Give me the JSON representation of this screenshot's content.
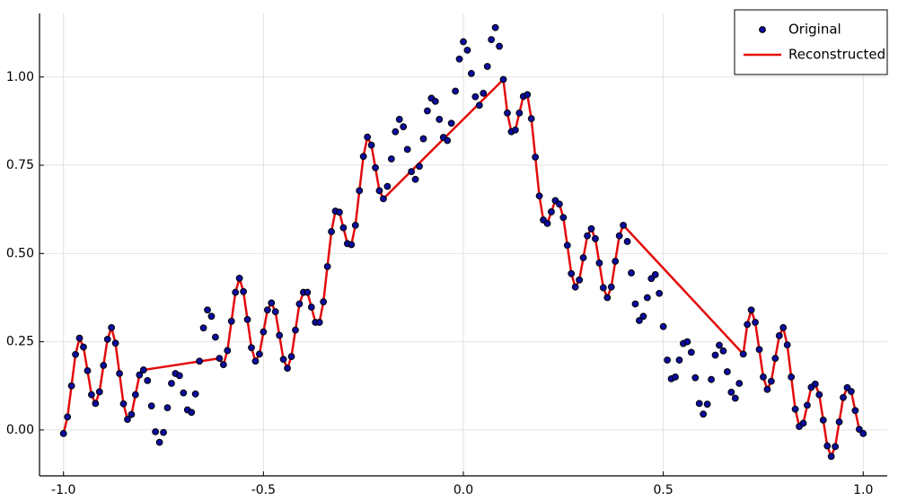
{
  "chart_data": {
    "type": "scatter",
    "xlim": [
      -1.06,
      1.06
    ],
    "ylim": [
      -0.13,
      1.18
    ],
    "xticks": [
      {
        "value": -1,
        "label": "-1.0"
      },
      {
        "value": -0.5,
        "label": "-0.5"
      },
      {
        "value": 0,
        "label": "0.0"
      },
      {
        "value": 0.5,
        "label": "0.5"
      },
      {
        "value": 1,
        "label": "1.0"
      }
    ],
    "yticks": [
      {
        "value": 0,
        "label": "0.00"
      },
      {
        "value": 0.25,
        "label": "0.25"
      },
      {
        "value": 0.5,
        "label": "0.50"
      },
      {
        "value": 0.75,
        "label": "0.75"
      },
      {
        "value": 1,
        "label": "1.00"
      }
    ],
    "grid": true,
    "legend": "upper right",
    "series": [
      {
        "name": "Original",
        "type": "scatter",
        "color": "#0c0c9e",
        "x": [
          -1,
          -0.99,
          -0.98,
          -0.97,
          -0.96,
          -0.95,
          -0.94,
          -0.93,
          -0.92,
          -0.91,
          -0.9,
          -0.89,
          -0.88,
          -0.87,
          -0.86,
          -0.85,
          -0.84,
          -0.83,
          -0.82,
          -0.81,
          -0.8,
          -0.79,
          -0.78,
          -0.77,
          -0.76,
          -0.75,
          -0.74,
          -0.73,
          -0.72,
          -0.71,
          -0.7,
          -0.69,
          -0.68,
          -0.67,
          -0.66,
          -0.65,
          -0.64,
          -0.63,
          -0.62,
          -0.61,
          -0.6,
          -0.59,
          -0.58,
          -0.57,
          -0.56,
          -0.55,
          -0.54,
          -0.53,
          -0.52,
          -0.51,
          -0.5,
          -0.49,
          -0.48,
          -0.47,
          -0.46,
          -0.45,
          -0.44,
          -0.43,
          -0.42,
          -0.41,
          -0.4,
          -0.39,
          -0.38,
          -0.37,
          -0.36,
          -0.35,
          -0.34,
          -0.33,
          -0.32,
          -0.31,
          -0.3,
          -0.29,
          -0.28,
          -0.27,
          -0.26,
          -0.25,
          -0.24,
          -0.23,
          -0.22,
          -0.21,
          -0.2,
          -0.19,
          -0.18,
          -0.17,
          -0.16,
          -0.15,
          -0.14,
          -0.13,
          -0.12,
          -0.11,
          -0.1,
          -0.09,
          -0.08,
          -0.07,
          -0.06,
          -0.05,
          -0.04,
          -0.03,
          -0.02,
          -0.01,
          0,
          0.01,
          0.02,
          0.03,
          0.04,
          0.05,
          0.06,
          0.07,
          0.08,
          0.09,
          0.1,
          0.11,
          0.12,
          0.13,
          0.14,
          0.15,
          0.16,
          0.17,
          0.18,
          0.19,
          0.2,
          0.21,
          0.22,
          0.23,
          0.24,
          0.25,
          0.26,
          0.27,
          0.28,
          0.29,
          0.3,
          0.31,
          0.32,
          0.33,
          0.34,
          0.35,
          0.36,
          0.37,
          0.38,
          0.39,
          0.4,
          0.41,
          0.42,
          0.43,
          0.44,
          0.45,
          0.46,
          0.47,
          0.48,
          0.49,
          0.5,
          0.51,
          0.52,
          0.53,
          0.54,
          0.55,
          0.56,
          0.57,
          0.58,
          0.59,
          0.6,
          0.61,
          0.62,
          0.63,
          0.64,
          0.65,
          0.66,
          0.67,
          0.68,
          0.69,
          0.7,
          0.71,
          0.72,
          0.73,
          0.74,
          0.75,
          0.76,
          0.77,
          0.78,
          0.79,
          0.8,
          0.81,
          0.82,
          0.83,
          0.84,
          0.85,
          0.86,
          0.87,
          0.88,
          0.89,
          0.9,
          0.91,
          0.92,
          0.93,
          0.94,
          0.95,
          0.96,
          0.97,
          0.98,
          0.99,
          1
        ],
        "values": [
          -0.01,
          0.037,
          0.125,
          0.214,
          0.26,
          0.235,
          0.168,
          0.1,
          0.075,
          0.108,
          0.183,
          0.257,
          0.29,
          0.246,
          0.16,
          0.074,
          0.03,
          0.044,
          0.1,
          0.156,
          0.17,
          0.14,
          0.068,
          -0.005,
          -0.035,
          -0.007,
          0.063,
          0.132,
          0.16,
          0.154,
          0.105,
          0.057,
          0.05,
          0.102,
          0.195,
          0.289,
          0.34,
          0.322,
          0.263,
          0.203,
          0.185,
          0.225,
          0.308,
          0.39,
          0.43,
          0.392,
          0.313,
          0.233,
          0.195,
          0.215,
          0.278,
          0.34,
          0.36,
          0.335,
          0.268,
          0.2,
          0.175,
          0.208,
          0.283,
          0.357,
          0.39,
          0.39,
          0.348,
          0.305,
          0.305,
          0.363,
          0.463,
          0.562,
          0.62,
          0.617,
          0.573,
          0.528,
          0.525,
          0.58,
          0.678,
          0.775,
          0.83,
          0.807,
          0.743,
          0.678,
          0.655,
          0.69,
          0.768,
          0.845,
          0.88,
          0.859,
          0.795,
          0.732,
          0.71,
          0.747,
          0.825,
          0.904,
          0.94,
          0.931,
          0.88,
          0.829,
          0.82,
          0.869,
          0.96,
          1.051,
          1.1,
          1.076,
          1.01,
          0.944,
          0.92,
          0.954,
          1.03,
          1.106,
          1.14,
          1.087,
          0.993,
          0.898,
          0.845,
          0.85,
          0.898,
          0.945,
          0.95,
          0.882,
          0.773,
          0.663,
          0.595,
          0.585,
          0.618,
          0.65,
          0.64,
          0.602,
          0.523,
          0.443,
          0.405,
          0.425,
          0.488,
          0.55,
          0.57,
          0.542,
          0.473,
          0.403,
          0.375,
          0.405,
          0.478,
          0.55,
          0.58,
          0.534,
          0.445,
          0.357,
          0.31,
          0.322,
          0.375,
          0.429,
          0.44,
          0.387,
          0.293,
          0.198,
          0.145,
          0.15,
          0.198,
          0.245,
          0.25,
          0.22,
          0.148,
          0.075,
          0.045,
          0.073,
          0.143,
          0.212,
          0.24,
          0.224,
          0.165,
          0.107,
          0.09,
          0.132,
          0.215,
          0.299,
          0.34,
          0.305,
          0.228,
          0.15,
          0.115,
          0.138,
          0.203,
          0.267,
          0.29,
          0.241,
          0.15,
          0.059,
          0.01,
          0.019,
          0.07,
          0.121,
          0.13,
          0.1,
          0.028,
          -0.045,
          -0.075,
          -0.047,
          0.023,
          0.092,
          0.12,
          0.109,
          0.055,
          0.002,
          -0.01
        ]
      },
      {
        "name": "Reconstructed",
        "type": "line",
        "color": "#e30b0b",
        "x": [
          -1,
          -0.99,
          -0.98,
          -0.97,
          -0.96,
          -0.95,
          -0.94,
          -0.93,
          -0.92,
          -0.91,
          -0.9,
          -0.89,
          -0.88,
          -0.87,
          -0.86,
          -0.85,
          -0.84,
          -0.83,
          -0.82,
          -0.81,
          -0.8,
          -0.61,
          -0.6,
          -0.59,
          -0.58,
          -0.57,
          -0.56,
          -0.55,
          -0.54,
          -0.53,
          -0.52,
          -0.51,
          -0.5,
          -0.49,
          -0.48,
          -0.47,
          -0.46,
          -0.45,
          -0.44,
          -0.43,
          -0.42,
          -0.41,
          -0.4,
          -0.39,
          -0.38,
          -0.37,
          -0.36,
          -0.35,
          -0.34,
          -0.33,
          -0.32,
          -0.31,
          -0.3,
          -0.29,
          -0.28,
          -0.27,
          -0.26,
          -0.25,
          -0.24,
          -0.23,
          -0.22,
          -0.21,
          -0.2,
          0.1,
          0.11,
          0.12,
          0.13,
          0.14,
          0.15,
          0.16,
          0.17,
          0.18,
          0.19,
          0.2,
          0.21,
          0.22,
          0.23,
          0.24,
          0.25,
          0.26,
          0.27,
          0.28,
          0.29,
          0.3,
          0.31,
          0.32,
          0.33,
          0.34,
          0.35,
          0.36,
          0.37,
          0.38,
          0.39,
          0.4,
          0.7,
          0.71,
          0.72,
          0.73,
          0.74,
          0.75,
          0.76,
          0.77,
          0.78,
          0.79,
          0.8,
          0.81,
          0.82,
          0.83,
          0.84,
          0.85,
          0.86,
          0.87,
          0.88,
          0.89,
          0.9,
          0.91,
          0.92,
          0.93,
          0.94,
          0.95,
          0.96,
          0.97,
          0.98,
          0.99,
          1
        ],
        "values": [
          -0.01,
          0.037,
          0.125,
          0.214,
          0.26,
          0.235,
          0.168,
          0.1,
          0.075,
          0.108,
          0.183,
          0.257,
          0.29,
          0.246,
          0.16,
          0.074,
          0.03,
          0.044,
          0.1,
          0.156,
          0.17,
          0.203,
          0.185,
          0.225,
          0.308,
          0.39,
          0.43,
          0.392,
          0.313,
          0.233,
          0.195,
          0.215,
          0.278,
          0.34,
          0.36,
          0.335,
          0.268,
          0.2,
          0.175,
          0.208,
          0.283,
          0.357,
          0.39,
          0.39,
          0.348,
          0.305,
          0.305,
          0.363,
          0.463,
          0.562,
          0.62,
          0.617,
          0.573,
          0.528,
          0.525,
          0.58,
          0.678,
          0.775,
          0.83,
          0.807,
          0.743,
          0.678,
          0.655,
          0.993,
          0.898,
          0.845,
          0.85,
          0.898,
          0.945,
          0.95,
          0.882,
          0.773,
          0.663,
          0.595,
          0.585,
          0.618,
          0.65,
          0.64,
          0.602,
          0.523,
          0.443,
          0.405,
          0.425,
          0.488,
          0.55,
          0.57,
          0.542,
          0.473,
          0.403,
          0.375,
          0.405,
          0.478,
          0.55,
          0.58,
          0.215,
          0.299,
          0.34,
          0.305,
          0.228,
          0.15,
          0.115,
          0.138,
          0.203,
          0.267,
          0.29,
          0.241,
          0.15,
          0.059,
          0.01,
          0.019,
          0.07,
          0.121,
          0.13,
          0.1,
          0.028,
          -0.045,
          -0.075,
          -0.047,
          0.023,
          0.092,
          0.12,
          0.109,
          0.055,
          0.002,
          -0.01
        ]
      }
    ]
  }
}
